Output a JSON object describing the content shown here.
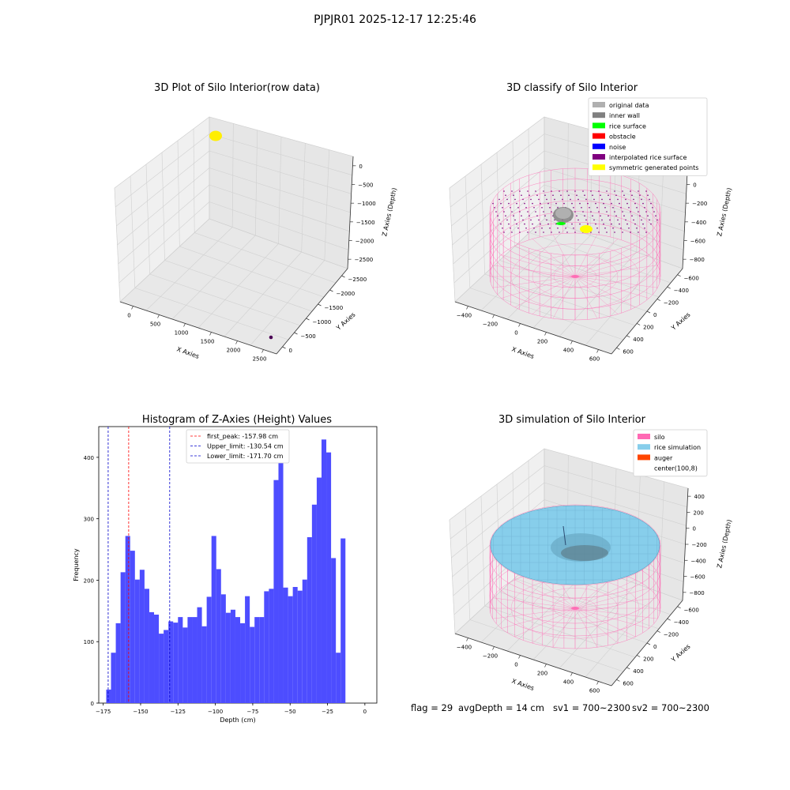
{
  "suptitle": "PJPJR01 2025-12-17 12:25:46",
  "status": {
    "flag": "flag = 29",
    "avg_depth": "avgDepth = 14 cm",
    "sv1": "sv1 = 700~2300",
    "sv2": "sv2 = 700~2300"
  },
  "colors": {
    "hist_bar": "#4d4dff",
    "first_peak": "#ff0000",
    "limits": "#0000cc",
    "silo_wire": "#ff69b4",
    "rice": "#87ceeb",
    "auger": "#ff4500"
  },
  "chart_data": [
    {
      "type": "scatter3d",
      "title": "3D Plot of Silo Interior(row data)",
      "xlabel": "X Axies",
      "ylabel": "Y Axies",
      "zlabel": "Z Axies (Depth)",
      "xticks": [
        "0",
        "500",
        "1000",
        "1500",
        "2000",
        "2500"
      ],
      "yticks": [
        "0",
        "−500",
        "−1000",
        "−1500",
        "−2000",
        "−2500"
      ],
      "zticks": [
        "0",
        "−500",
        "−1000",
        "−1500",
        "−2000",
        "−2500"
      ],
      "point_groups": [
        {
          "color": "#ffee00",
          "x": -100,
          "y": 0,
          "z": 0
        },
        {
          "color": "#4b0055",
          "x": 2700,
          "y": -2700,
          "z": -2800
        }
      ]
    },
    {
      "type": "scatter3d",
      "title": "3D classify of Silo Interior",
      "xlabel": "X Axies",
      "ylabel": "Y Axies",
      "zlabel": "Z Axies (Depth)",
      "xticks": [
        "−400",
        "−200",
        "0",
        "200",
        "400",
        "600"
      ],
      "yticks": [
        "600",
        "400",
        "200",
        "0",
        "−200",
        "−400",
        "−600"
      ],
      "zticks": [
        "200",
        "0",
        "−200",
        "−400",
        "−600",
        "−800"
      ],
      "legend": [
        {
          "label": "original data",
          "color": "#b0b0b0"
        },
        {
          "label": "inner wall",
          "color": "#808080"
        },
        {
          "label": "rice surface",
          "color": "#00ff00"
        },
        {
          "label": "obstacle",
          "color": "#ff0000"
        },
        {
          "label": "noise",
          "color": "#0000ff"
        },
        {
          "label": "interpolated rice surface",
          "color": "#800080"
        },
        {
          "label": "symmetric generated points",
          "color": "#ffff00"
        }
      ],
      "legend_placement": "top-right"
    },
    {
      "type": "bar",
      "title": "Histogram of Z-Axies (Height) Values",
      "xlabel": "Depth (cm)",
      "ylabel": "Frequency",
      "bin_start": -173,
      "bin_width": 3.2,
      "values": [
        22,
        82,
        130,
        213,
        272,
        248,
        201,
        217,
        186,
        148,
        144,
        113,
        119,
        133,
        131,
        140,
        123,
        140,
        140,
        156,
        125,
        173,
        272,
        218,
        177,
        147,
        152,
        140,
        130,
        174,
        124,
        140,
        140,
        182,
        186,
        363,
        393,
        188,
        174,
        189,
        183,
        201,
        270,
        323,
        367,
        429,
        408,
        236,
        82,
        268
      ],
      "xlim": [
        -178,
        8
      ],
      "ylim": [
        0,
        450
      ],
      "xticks": [
        -175,
        -150,
        -125,
        -100,
        -75,
        -50,
        -25,
        0
      ],
      "yticks": [
        0,
        100,
        200,
        300,
        400
      ],
      "xtick_labels": [
        "−175",
        "−150",
        "−125",
        "−100",
        "−75",
        "−50",
        "−25",
        "0"
      ],
      "ytick_labels": [
        "0",
        "100",
        "200",
        "300",
        "400"
      ],
      "vlines": [
        {
          "x": -157.98,
          "label": "first_peak: -157.98 cm",
          "color": "#ff0000"
        },
        {
          "x": -130.54,
          "label": "Upper_limit: -130.54 cm",
          "color": "#0000cc"
        },
        {
          "x": -171.7,
          "label": "Lower_limit: -171.70 cm",
          "color": "#0000cc"
        }
      ],
      "legend_placement": "upper-center"
    },
    {
      "type": "surface3d",
      "title": "3D simulation of Silo Interior",
      "xlabel": "X Axies",
      "ylabel": "Y Axies",
      "zlabel": "Z Axies (Depth)",
      "xticks": [
        "−400",
        "−200",
        "0",
        "200",
        "400",
        "600"
      ],
      "yticks": [
        "600",
        "400",
        "200",
        "0",
        "−200",
        "−400",
        "−600"
      ],
      "zticks": [
        "400",
        "200",
        "0",
        "−200",
        "−400",
        "−600",
        "−800"
      ],
      "legend": [
        {
          "label": "silo",
          "color": "#ff69b4"
        },
        {
          "label": "rice simulation",
          "color": "#87ceeb"
        },
        {
          "label": "auger",
          "color": "#ff4500"
        },
        {
          "label": "center(100,8)",
          "color": "#ffffff"
        }
      ],
      "legend_placement": "top-right"
    }
  ]
}
